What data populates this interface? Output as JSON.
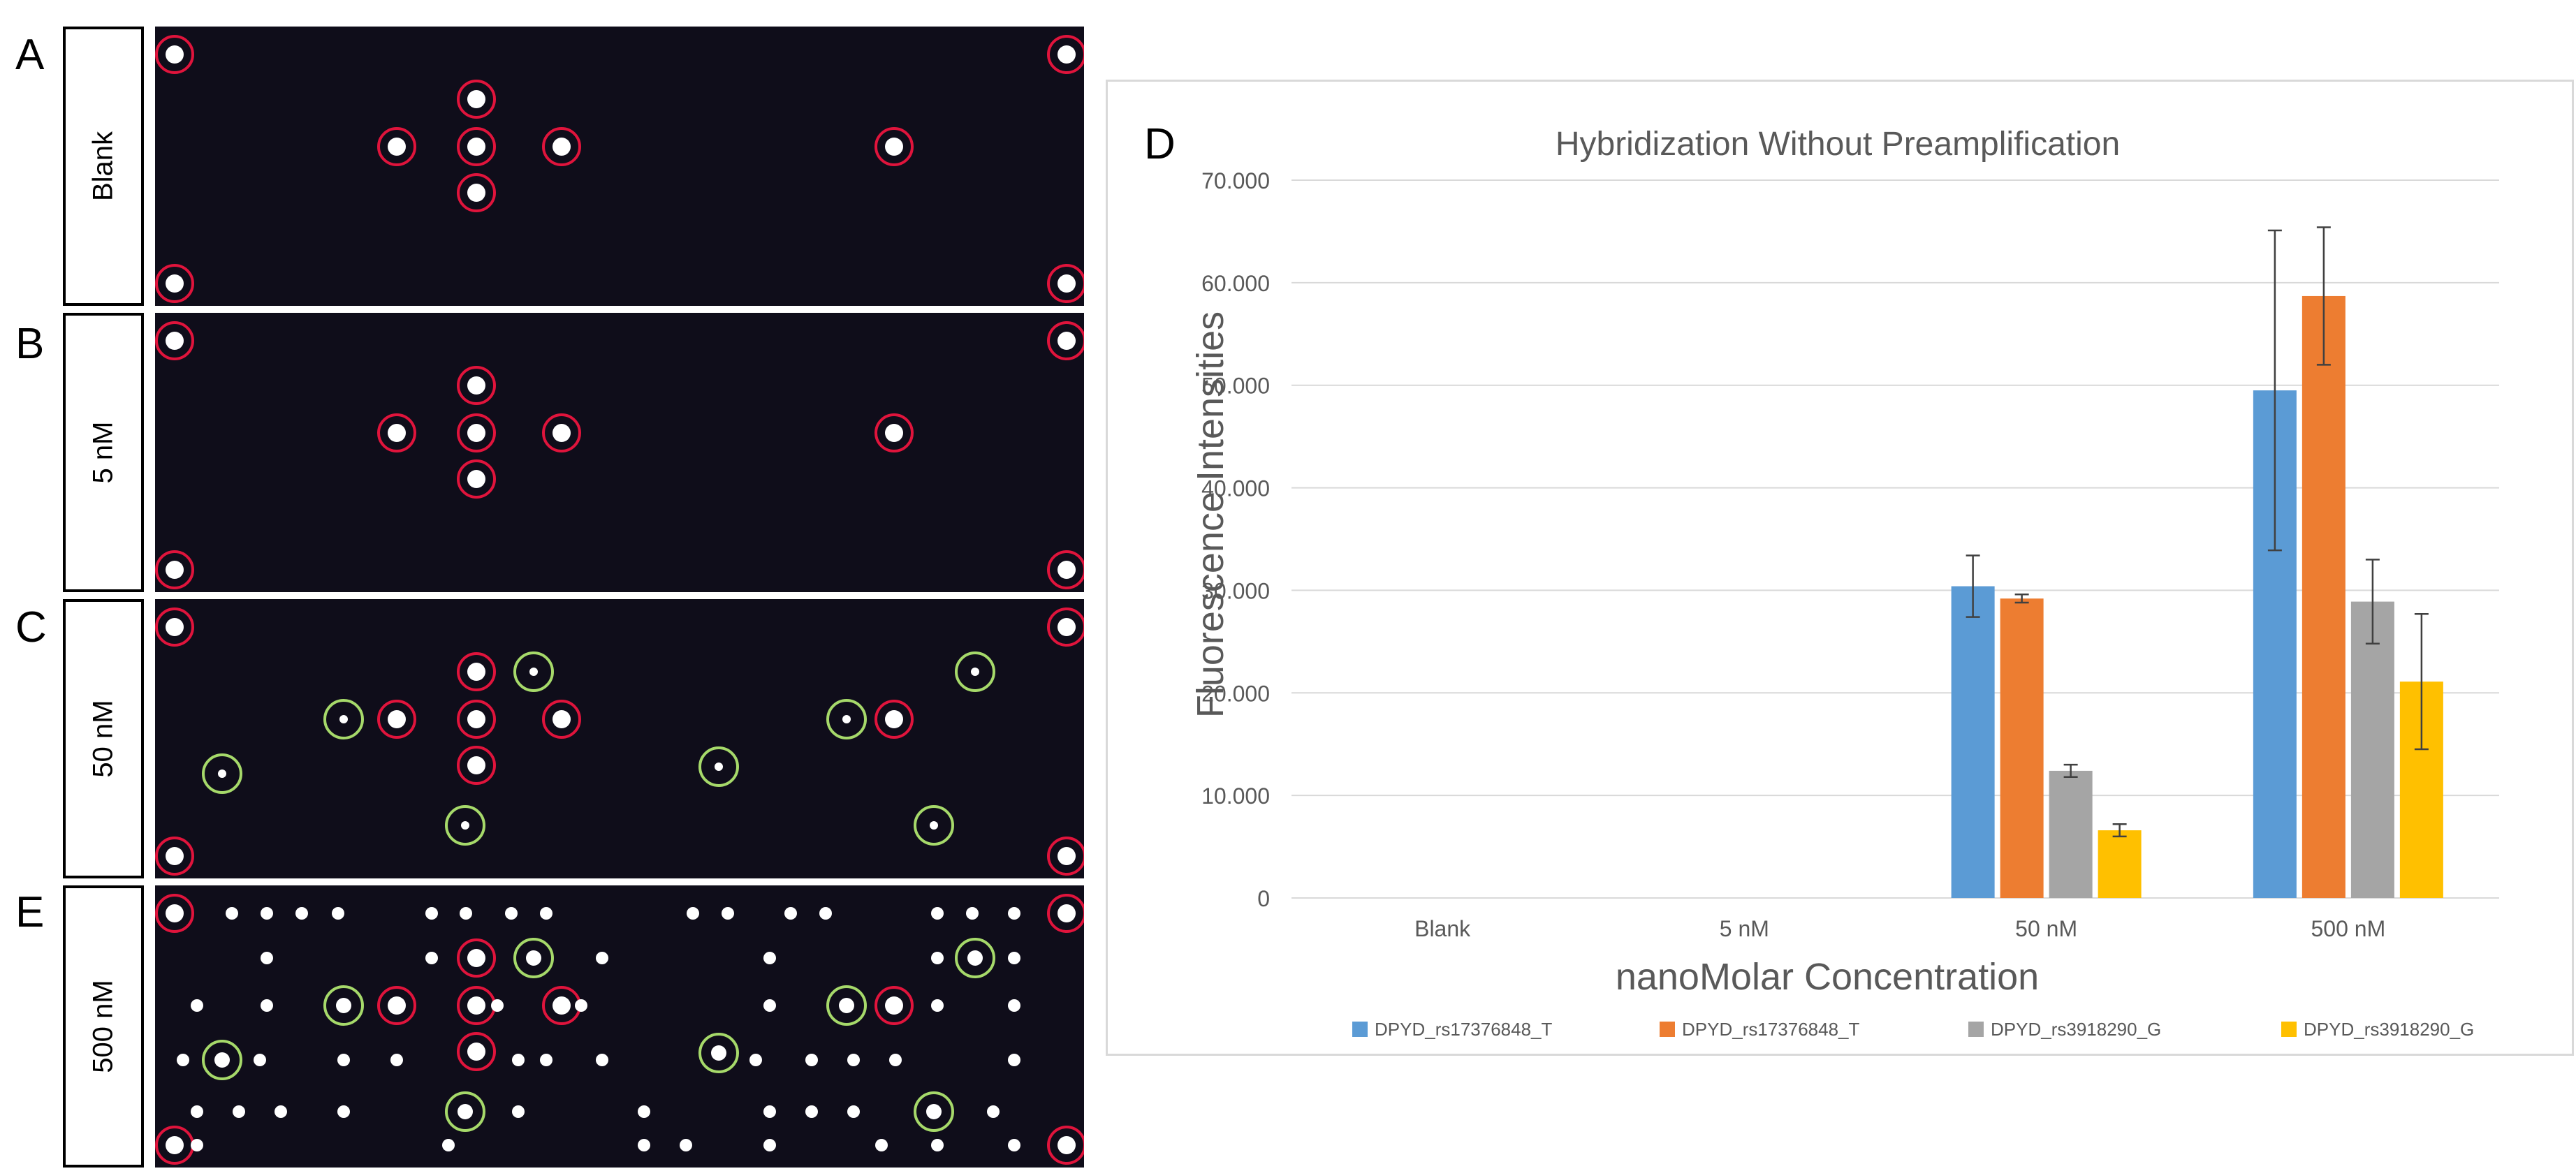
{
  "panels": [
    {
      "letter": "A",
      "label": "Blank"
    },
    {
      "letter": "B",
      "label": "5 nM"
    },
    {
      "letter": "C",
      "label": "50 nM"
    },
    {
      "letter": "E",
      "label": "500 nM"
    }
  ],
  "colors": {
    "array_background": "#0f0d1a",
    "marker_circle": "#e0143c",
    "target_circle": "#a6d96a",
    "spot": "#ffffff"
  },
  "chart_panel_letter": "D",
  "chart_data": {
    "type": "bar",
    "title": "Hybridization Without Preamplification",
    "xlabel": "nanoMolar Concentration",
    "ylabel": "Fluorescence Intensities",
    "categories": [
      "Blank",
      "5 nM",
      "50 nM",
      "500 nM"
    ],
    "yticks": [
      "0",
      "10.000",
      "20.000",
      "30.000",
      "40.000",
      "50.000",
      "60.000",
      "70.000"
    ],
    "ylim": [
      0,
      70
    ],
    "grid": true,
    "legend_position": "bottom",
    "series": [
      {
        "name": "DPYD_rs17376848_T",
        "color": "#5b9bd5",
        "values": [
          0,
          0,
          30.4,
          49.5
        ],
        "errors": [
          0,
          0,
          3.0,
          15.6
        ]
      },
      {
        "name": "DPYD_rs17376848_T",
        "color": "#ed7d31",
        "values": [
          0,
          0,
          29.2,
          58.7
        ],
        "errors": [
          0,
          0,
          0.4,
          6.7
        ]
      },
      {
        "name": "DPYD_rs3918290_G",
        "color": "#a5a5a5",
        "values": [
          0,
          0,
          12.4,
          28.9
        ],
        "errors": [
          0,
          0,
          0.6,
          4.1
        ]
      },
      {
        "name": "DPYD_rs3918290_G",
        "color": "#ffc000",
        "values": [
          0,
          0,
          6.6,
          21.1
        ],
        "errors": [
          0,
          0,
          0.6,
          6.6
        ]
      }
    ]
  }
}
